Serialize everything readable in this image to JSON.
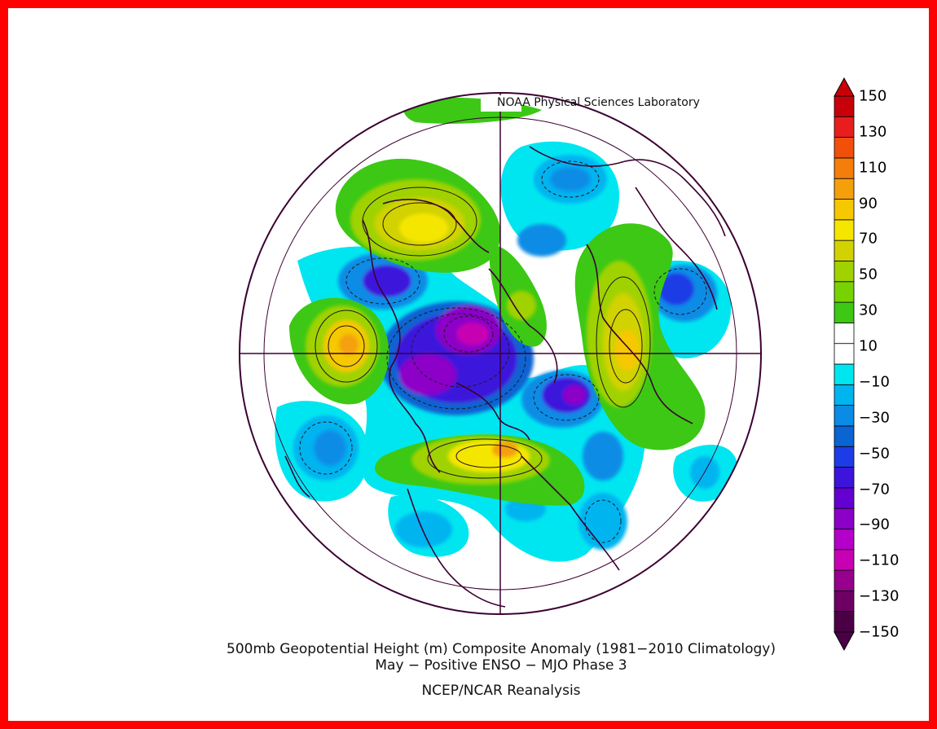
{
  "credit": "NOAA Physical Sciences Laboratory",
  "caption": {
    "line1": "500mb Geopotential Height (m) Composite Anomaly (1981−2010 Climatology)",
    "line2": "May − Positive ENSO − MJO Phase 3",
    "line3": "NCEP/NCAR Reanalysis"
  },
  "colorbar": {
    "labels": [
      "150",
      "130",
      "110",
      "90",
      "70",
      "50",
      "30",
      "10",
      "−10",
      "−30",
      "−50",
      "−70",
      "−90",
      "−110",
      "−130",
      "−150"
    ],
    "colors": [
      "#c8000a",
      "#e81e1e",
      "#f0500a",
      "#f57d0a",
      "#f5a00a",
      "#f5c800",
      "#f5e600",
      "#d2d200",
      "#a0d200",
      "#78d200",
      "#3cc814",
      "#ffffff",
      "#ffffff",
      "#00e6f0",
      "#00b4f0",
      "#0a8ce6",
      "#0a64d2",
      "#1e3ce6",
      "#3c14dc",
      "#6400d2",
      "#8c00c8",
      "#b400c8",
      "#c800b4",
      "#96008c",
      "#6e0064",
      "#4b0046"
    ]
  },
  "colors": {
    "border": "#ff0000",
    "coast": "#3c0032",
    "contour": "#1a1a1a"
  }
}
